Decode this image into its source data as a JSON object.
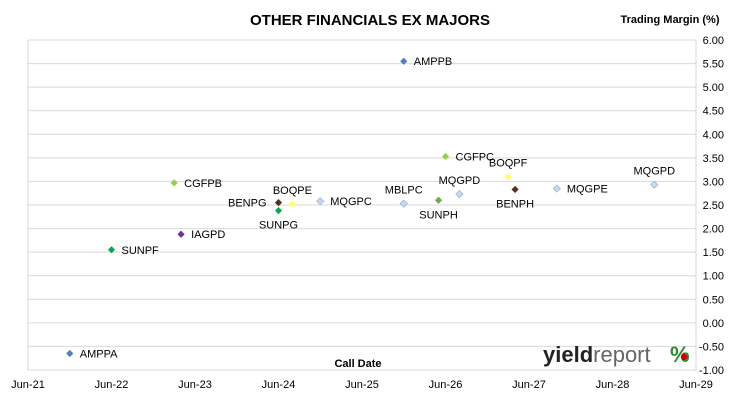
{
  "chart_data": {
    "type": "scatter",
    "title": "OTHER FINANCIALS EX MAJORS",
    "xlabel": "Call Date",
    "ylabel": "Trading Margin (%)",
    "x_ticks": [
      "Jun-21",
      "Jun-22",
      "Jun-23",
      "Jun-24",
      "Jun-25",
      "Jun-26",
      "Jun-27",
      "Jun-28",
      "Jun-29"
    ],
    "xlim": [
      "Jun-21",
      "Jun-29"
    ],
    "y_ticks": [
      "6.00",
      "5.50",
      "5.00",
      "4.50",
      "4.00",
      "3.50",
      "3.00",
      "2.50",
      "2.00",
      "1.50",
      "1.00",
      "0.50",
      "0.00",
      "-0.50",
      "-1.00"
    ],
    "ylim": [
      -1.0,
      6.0
    ],
    "grid": "horizontal",
    "points": [
      {
        "label": "AMPPA",
        "x": "2021-12",
        "y": -0.65,
        "color": "#4f81bd",
        "label_pos": "right"
      },
      {
        "label": "SUNPF",
        "x": "2022-06",
        "y": 1.55,
        "color": "#00b050",
        "label_pos": "right"
      },
      {
        "label": "CGFPB",
        "x": "2023-03",
        "y": 2.97,
        "color": "#92d050",
        "label_pos": "right"
      },
      {
        "label": "IAGPD",
        "x": "2023-04",
        "y": 1.88,
        "color": "#7030a0",
        "label_pos": "right"
      },
      {
        "label": "BENPG",
        "x": "2024-06",
        "y": 2.55,
        "color": "#5a2d1e",
        "label_pos": "left"
      },
      {
        "label": "SUNPG",
        "x": "2024-06",
        "y": 2.38,
        "color": "#00b050",
        "label_pos": "below"
      },
      {
        "label": "BOQPE",
        "x": "2024-08",
        "y": 2.52,
        "color": "#ffff66",
        "label_pos": "above"
      },
      {
        "label": "MQGPC",
        "x": "2024-12",
        "y": 2.58,
        "color": "#c5d9f1",
        "label_pos": "right"
      },
      {
        "label": "AMPPB",
        "x": "2025-12",
        "y": 5.55,
        "color": "#4f81bd",
        "label_pos": "right"
      },
      {
        "label": "MBLPC",
        "x": "2025-12",
        "y": 2.53,
        "color": "#c5d9f1",
        "label_pos": "above"
      },
      {
        "label": "CGFPC",
        "x": "2026-06",
        "y": 3.53,
        "color": "#92d050",
        "label_pos": "right"
      },
      {
        "label": "SUNPH",
        "x": "2026-05",
        "y": 2.6,
        "color": "#70ad47",
        "label_pos": "below"
      },
      {
        "label": "MQGPD",
        "x": "2026-08",
        "y": 2.73,
        "color": "#c5d9f1",
        "label_pos": "above"
      },
      {
        "label": "BOQPF",
        "x": "2027-03",
        "y": 3.1,
        "color": "#ffff66",
        "label_pos": "above"
      },
      {
        "label": "BENPH",
        "x": "2027-04",
        "y": 2.83,
        "color": "#5a2d1e",
        "label_pos": "below"
      },
      {
        "label": "MQGPE",
        "x": "2027-10",
        "y": 2.85,
        "color": "#c5d9f1",
        "label_pos": "right"
      },
      {
        "label": "MQGPD",
        "x": "2028-12",
        "y": 2.93,
        "color": "#c5d9f1",
        "label_pos": "above"
      }
    ]
  },
  "logo": {
    "text": "yieldreport",
    "symbol": "%"
  }
}
